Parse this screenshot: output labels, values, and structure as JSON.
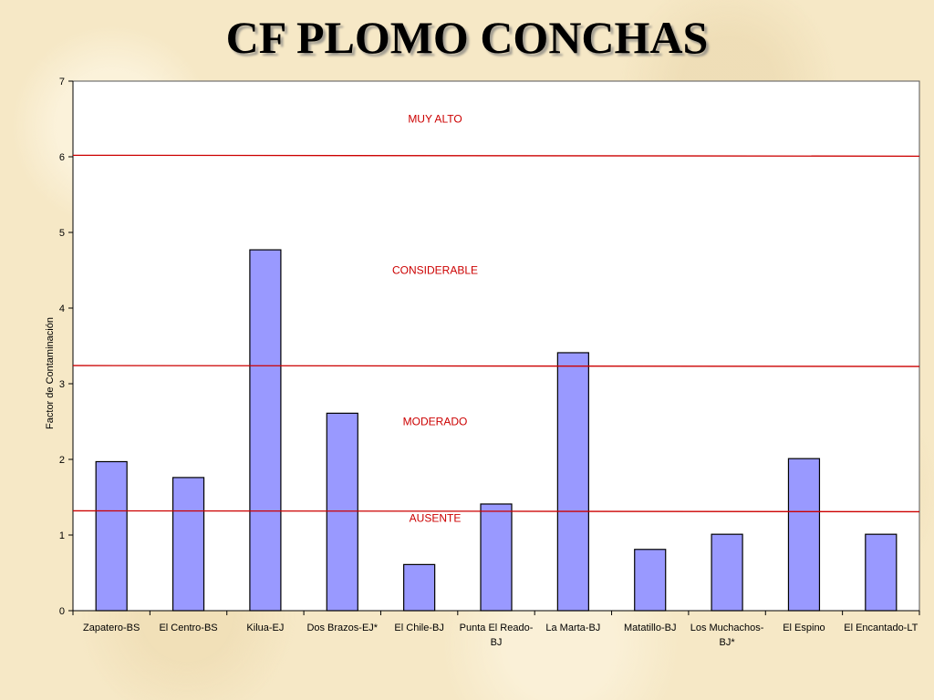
{
  "slide": {
    "title": "CF PLOMO CONCHAS"
  },
  "colors": {
    "bar_fill": "#9999ff",
    "bar_stroke": "#000000",
    "threshold_line": "#cc0000",
    "threshold_label": "#cc0000",
    "plot_background": "#ffffff"
  },
  "chart_data": {
    "type": "bar",
    "title": "",
    "xlabel": "",
    "ylabel": "Factor de Contaminación",
    "ylim": [
      0,
      7
    ],
    "yticks": [
      0,
      1,
      2,
      3,
      4,
      5,
      6,
      7
    ],
    "grid": false,
    "legend": "none",
    "categories": [
      [
        "Zapatero-BS"
      ],
      [
        "El Centro-BS"
      ],
      [
        "Kilua-EJ"
      ],
      [
        "Dos Brazos-EJ*"
      ],
      [
        "El Chile-BJ"
      ],
      [
        "Punta El Reado-",
        "BJ"
      ],
      [
        "La Marta-BJ"
      ],
      [
        "Matatillo-BJ"
      ],
      [
        "Los Muchachos-",
        "BJ*"
      ],
      [
        "El Espino"
      ],
      [
        "El Encantado-LT"
      ]
    ],
    "values": [
      1.97,
      1.76,
      4.77,
      2.61,
      0.61,
      1.41,
      3.41,
      0.81,
      1.01,
      2.01,
      1.01
    ],
    "thresholds": [
      {
        "value": 6.02,
        "label": "MUY ALTO",
        "label_value": 6.5
      },
      {
        "value": 3.24,
        "label": "CONSIDERABLE",
        "label_value": 4.5
      },
      {
        "value": 1.32,
        "label": "MODERADO",
        "label_value": 2.5
      },
      {
        "value": 1.32,
        "label": "AUSENTE",
        "label_value": 1.22
      }
    ]
  }
}
